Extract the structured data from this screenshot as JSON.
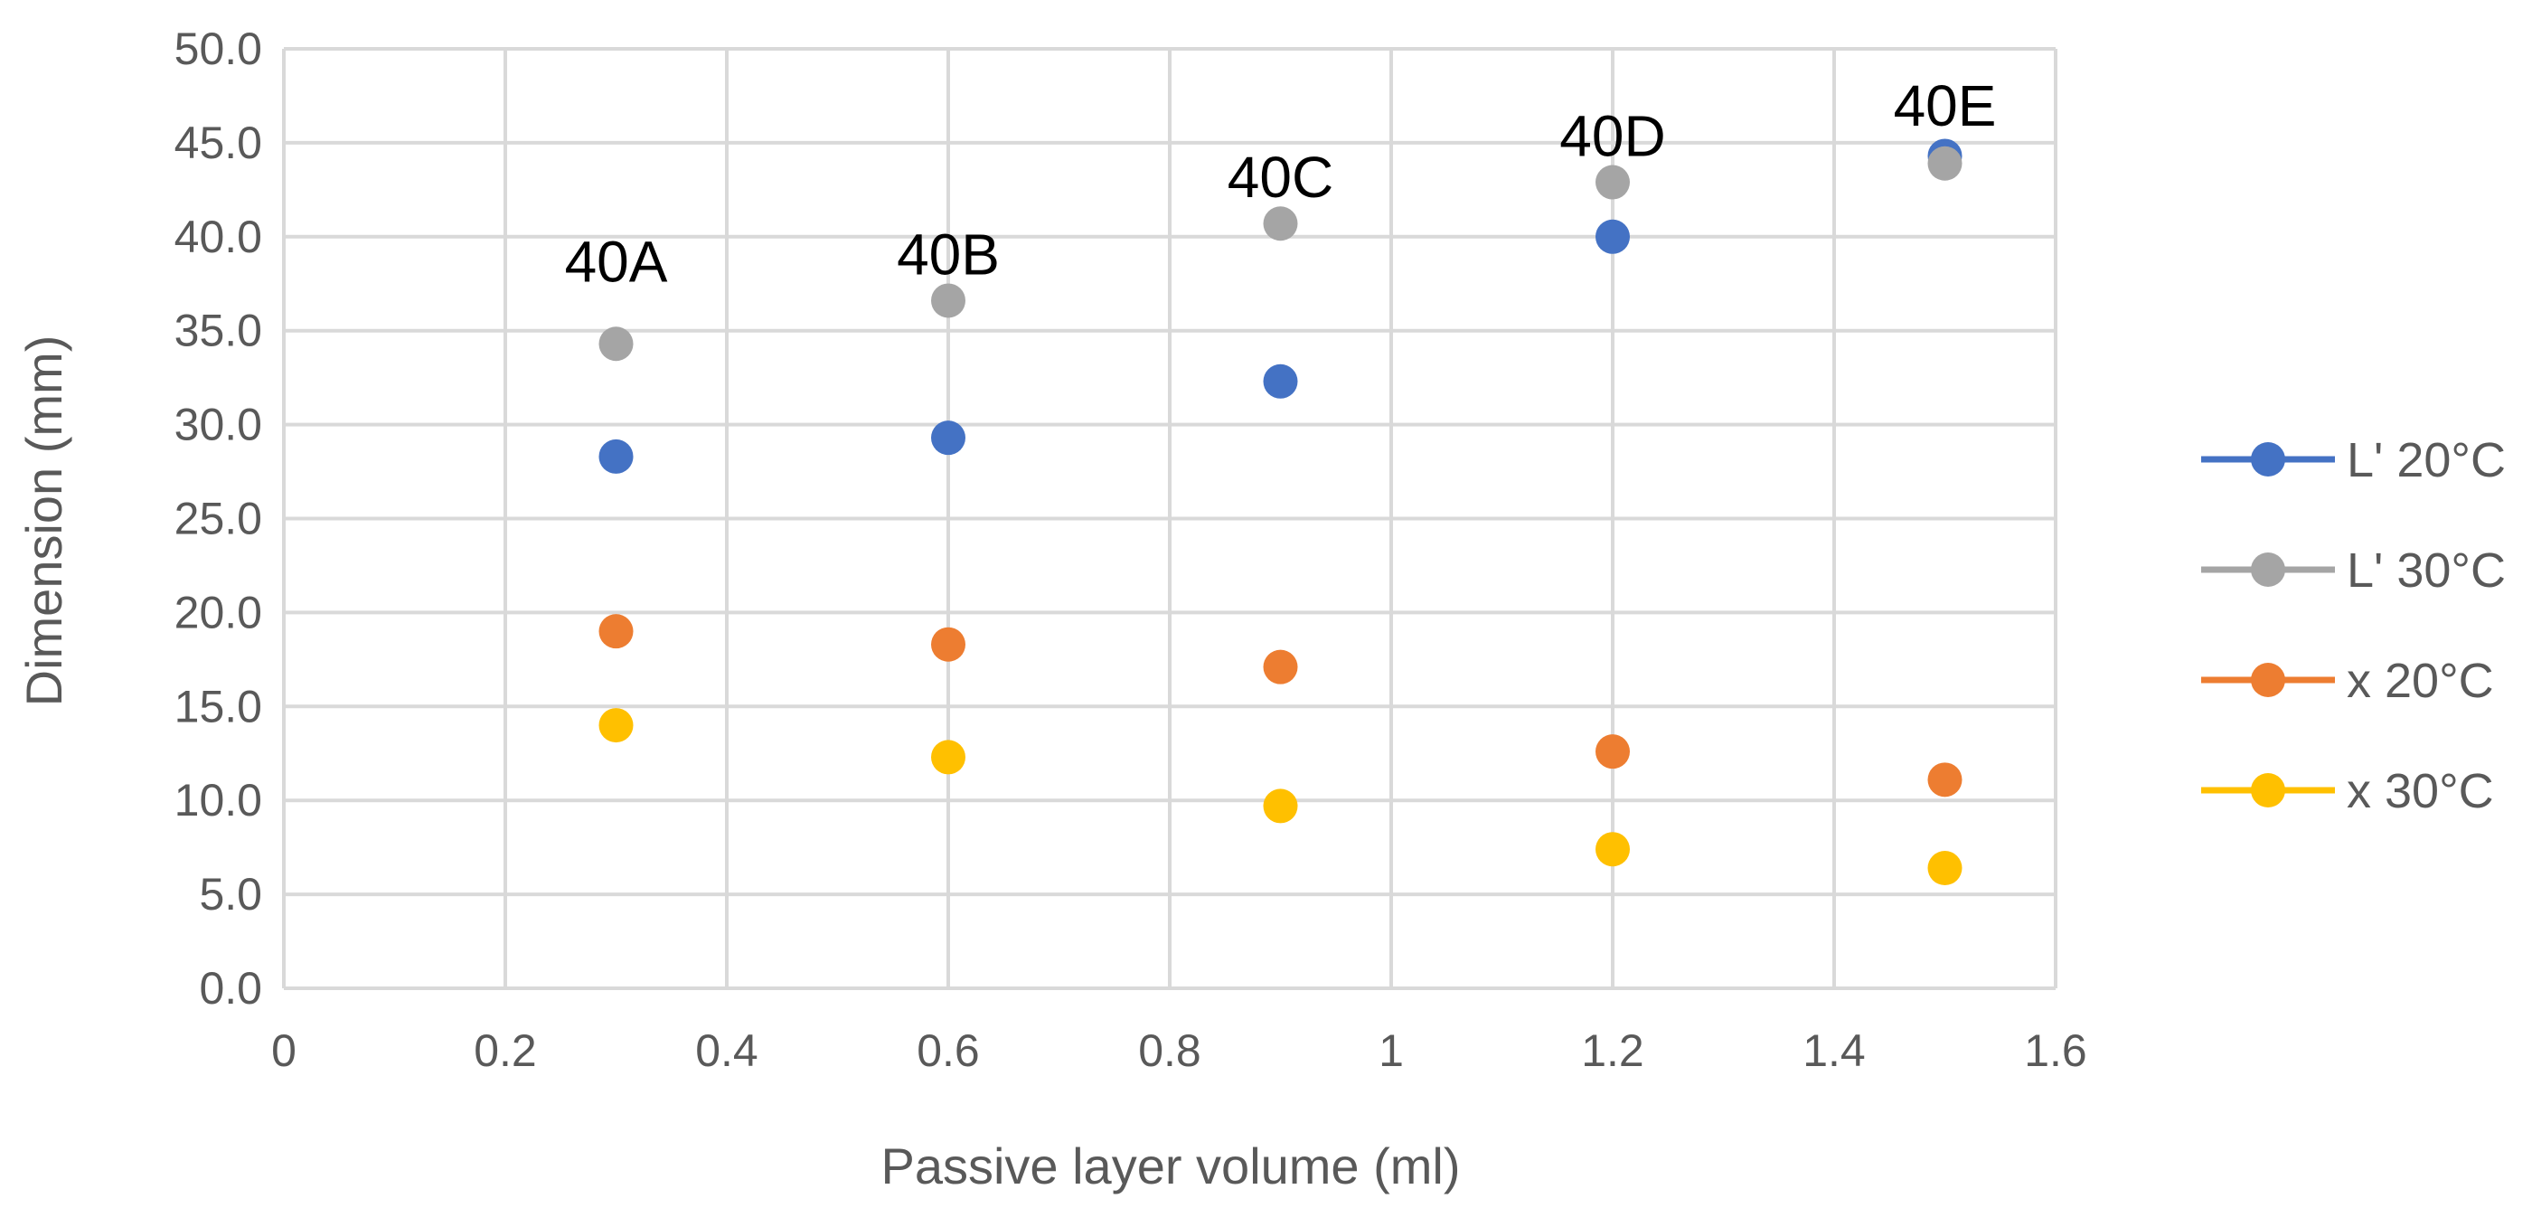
{
  "chart_data": {
    "type": "scatter",
    "title": "",
    "xlabel": "Passive layer volume (ml)",
    "ylabel": "Dimension (mm)",
    "xlim": [
      0,
      1.6
    ],
    "ylim": [
      0,
      50
    ],
    "x_ticks": [
      "0",
      "0.2",
      "0.4",
      "0.6",
      "0.8",
      "1",
      "1.2",
      "1.4",
      "1.6"
    ],
    "y_ticks": [
      "0.0",
      "5.0",
      "10.0",
      "15.0",
      "20.0",
      "25.0",
      "30.0",
      "35.0",
      "40.0",
      "45.0",
      "50.0"
    ],
    "grid": true,
    "legend_position": "right",
    "x": [
      0.3,
      0.6,
      0.9,
      1.2,
      1.5
    ],
    "series": [
      {
        "name": "L' 20°C",
        "color": "#4472c4",
        "values": [
          28.3,
          29.3,
          32.3,
          40.0,
          44.3
        ]
      },
      {
        "name": "L' 30°C",
        "color": "#a5a5a5",
        "values": [
          34.3,
          36.6,
          40.7,
          42.9,
          43.9
        ]
      },
      {
        "name": "x 20°C",
        "color": "#ed7d31",
        "values": [
          19.0,
          18.3,
          17.1,
          12.6,
          11.1
        ]
      },
      {
        "name": "x 30°C",
        "color": "#ffc000",
        "values": [
          14.0,
          12.3,
          9.7,
          7.4,
          6.4
        ]
      }
    ],
    "annotations": [
      {
        "text": "40A",
        "x": 0.3,
        "y": 37.6
      },
      {
        "text": "40B",
        "x": 0.6,
        "y": 38.0
      },
      {
        "text": "40C",
        "x": 0.9,
        "y": 42.1
      },
      {
        "text": "40D",
        "x": 1.2,
        "y": 44.3
      },
      {
        "text": "40E",
        "x": 1.5,
        "y": 45.9
      }
    ]
  }
}
